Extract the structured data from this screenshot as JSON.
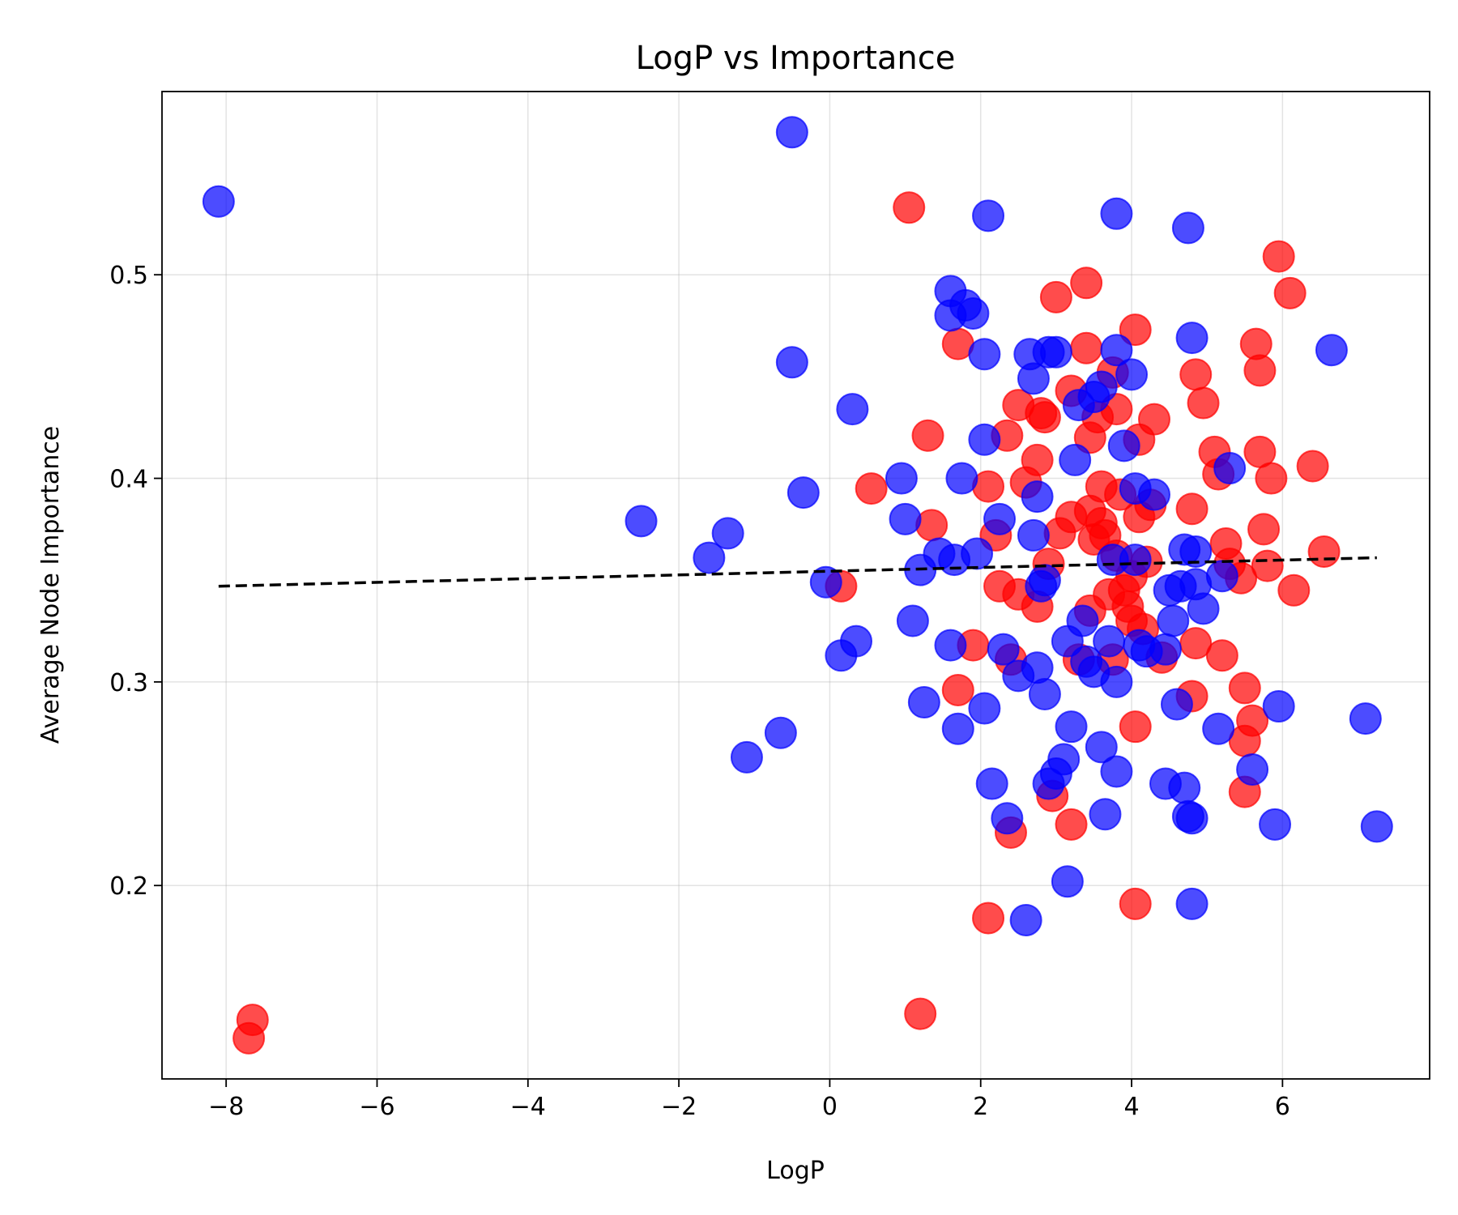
{
  "chart_data": {
    "type": "scatter",
    "title": "LogP vs Importance",
    "xlabel": "LogP",
    "ylabel": "Average Node Importance",
    "xlim": [
      -8.85,
      7.95
    ],
    "ylim": [
      0.105,
      0.59
    ],
    "xticks": [
      -8,
      -6,
      -4,
      -2,
      0,
      2,
      4,
      6
    ],
    "yticks": [
      0.2,
      0.3,
      0.4,
      0.5
    ],
    "xtick_labels": [
      "−8",
      "−6",
      "−4",
      "−2",
      "0",
      "2",
      "4",
      "6"
    ],
    "ytick_labels": [
      "0.2",
      "0.3",
      "0.4",
      "0.5"
    ],
    "grid": true,
    "colors": {
      "series_a": "#ff0000",
      "series_b": "#0000ff",
      "trend": "#000000"
    },
    "series": [
      {
        "color": "#ff0000",
        "points": [
          [
            -7.65,
            0.134
          ],
          [
            -7.7,
            0.125
          ],
          [
            1.05,
            0.533
          ],
          [
            1.2,
            0.137
          ],
          [
            0.15,
            0.347
          ],
          [
            0.55,
            0.395
          ],
          [
            1.3,
            0.421
          ],
          [
            1.35,
            0.377
          ],
          [
            1.7,
            0.466
          ],
          [
            1.7,
            0.296
          ],
          [
            1.9,
            0.318
          ],
          [
            2.1,
            0.396
          ],
          [
            2.1,
            0.184
          ],
          [
            2.2,
            0.372
          ],
          [
            2.25,
            0.347
          ],
          [
            2.35,
            0.421
          ],
          [
            2.4,
            0.311
          ],
          [
            2.4,
            0.226
          ],
          [
            2.5,
            0.436
          ],
          [
            2.5,
            0.343
          ],
          [
            2.6,
            0.398
          ],
          [
            2.75,
            0.409
          ],
          [
            2.75,
            0.337
          ],
          [
            2.8,
            0.432
          ],
          [
            2.85,
            0.43
          ],
          [
            2.9,
            0.358
          ],
          [
            2.95,
            0.244
          ],
          [
            3.0,
            0.489
          ],
          [
            3.05,
            0.373
          ],
          [
            3.2,
            0.443
          ],
          [
            3.2,
            0.381
          ],
          [
            3.2,
            0.23
          ],
          [
            3.3,
            0.311
          ],
          [
            3.4,
            0.496
          ],
          [
            3.4,
            0.464
          ],
          [
            3.45,
            0.42
          ],
          [
            3.45,
            0.384
          ],
          [
            3.45,
            0.335
          ],
          [
            3.5,
            0.37
          ],
          [
            3.55,
            0.43
          ],
          [
            3.6,
            0.396
          ],
          [
            3.6,
            0.378
          ],
          [
            3.65,
            0.372
          ],
          [
            3.7,
            0.343
          ],
          [
            3.75,
            0.452
          ],
          [
            3.75,
            0.311
          ],
          [
            3.8,
            0.434
          ],
          [
            3.8,
            0.362
          ],
          [
            3.85,
            0.392
          ],
          [
            3.9,
            0.345
          ],
          [
            3.95,
            0.337
          ],
          [
            4.0,
            0.352
          ],
          [
            4.0,
            0.33
          ],
          [
            4.05,
            0.473
          ],
          [
            4.05,
            0.278
          ],
          [
            4.05,
            0.191
          ],
          [
            4.1,
            0.419
          ],
          [
            4.1,
            0.381
          ],
          [
            4.15,
            0.326
          ],
          [
            4.2,
            0.359
          ],
          [
            4.25,
            0.387
          ],
          [
            4.3,
            0.429
          ],
          [
            4.4,
            0.312
          ],
          [
            4.8,
            0.385
          ],
          [
            4.8,
            0.293
          ],
          [
            4.85,
            0.451
          ],
          [
            4.85,
            0.319
          ],
          [
            4.95,
            0.437
          ],
          [
            5.1,
            0.413
          ],
          [
            5.15,
            0.402
          ],
          [
            5.2,
            0.313
          ],
          [
            5.25,
            0.368
          ],
          [
            5.3,
            0.358
          ],
          [
            5.45,
            0.351
          ],
          [
            5.5,
            0.297
          ],
          [
            5.5,
            0.271
          ],
          [
            5.5,
            0.246
          ],
          [
            5.6,
            0.281
          ],
          [
            5.65,
            0.466
          ],
          [
            5.7,
            0.453
          ],
          [
            5.7,
            0.413
          ],
          [
            5.75,
            0.375
          ],
          [
            5.8,
            0.357
          ],
          [
            5.85,
            0.4
          ],
          [
            5.95,
            0.509
          ],
          [
            6.1,
            0.491
          ],
          [
            6.15,
            0.345
          ],
          [
            6.4,
            0.406
          ],
          [
            6.55,
            0.364
          ]
        ]
      },
      {
        "color": "#0000ff",
        "points": [
          [
            -8.1,
            0.536
          ],
          [
            -0.5,
            0.57
          ],
          [
            -0.5,
            0.457
          ],
          [
            -0.35,
            0.393
          ],
          [
            -0.05,
            0.349
          ],
          [
            0.15,
            0.313
          ],
          [
            0.3,
            0.434
          ],
          [
            0.35,
            0.32
          ],
          [
            0.95,
            0.4
          ],
          [
            1.0,
            0.38
          ],
          [
            1.1,
            0.33
          ],
          [
            1.2,
            0.355
          ],
          [
            1.25,
            0.29
          ],
          [
            1.45,
            0.363
          ],
          [
            1.6,
            0.492
          ],
          [
            1.6,
            0.48
          ],
          [
            1.6,
            0.318
          ],
          [
            1.65,
            0.36
          ],
          [
            1.7,
            0.277
          ],
          [
            1.75,
            0.4
          ],
          [
            1.8,
            0.485
          ],
          [
            1.9,
            0.481
          ],
          [
            1.95,
            0.363
          ],
          [
            2.05,
            0.461
          ],
          [
            2.05,
            0.419
          ],
          [
            2.05,
            0.287
          ],
          [
            2.1,
            0.529
          ],
          [
            2.15,
            0.25
          ],
          [
            2.25,
            0.38
          ],
          [
            2.3,
            0.316
          ],
          [
            2.35,
            0.233
          ],
          [
            2.5,
            0.303
          ],
          [
            2.6,
            0.183
          ],
          [
            2.65,
            0.461
          ],
          [
            2.7,
            0.449
          ],
          [
            2.7,
            0.372
          ],
          [
            2.75,
            0.391
          ],
          [
            2.75,
            0.307
          ],
          [
            2.8,
            0.347
          ],
          [
            2.85,
            0.35
          ],
          [
            2.85,
            0.294
          ],
          [
            2.9,
            0.462
          ],
          [
            2.9,
            0.25
          ],
          [
            3.0,
            0.255
          ],
          [
            3.0,
            0.462
          ],
          [
            3.1,
            0.262
          ],
          [
            3.15,
            0.32
          ],
          [
            3.15,
            0.202
          ],
          [
            3.2,
            0.278
          ],
          [
            3.25,
            0.409
          ],
          [
            3.3,
            0.436
          ],
          [
            3.35,
            0.33
          ],
          [
            3.4,
            0.31
          ],
          [
            3.5,
            0.44
          ],
          [
            3.5,
            0.305
          ],
          [
            3.6,
            0.445
          ],
          [
            3.6,
            0.268
          ],
          [
            3.65,
            0.235
          ],
          [
            3.7,
            0.32
          ],
          [
            3.75,
            0.36
          ],
          [
            3.8,
            0.53
          ],
          [
            3.8,
            0.463
          ],
          [
            3.8,
            0.3
          ],
          [
            3.9,
            0.416
          ],
          [
            4.0,
            0.451
          ],
          [
            4.05,
            0.395
          ],
          [
            4.05,
            0.36
          ],
          [
            4.1,
            0.318
          ],
          [
            4.2,
            0.315
          ],
          [
            4.3,
            0.392
          ],
          [
            4.45,
            0.25
          ],
          [
            4.45,
            0.316
          ],
          [
            4.5,
            0.345
          ],
          [
            4.55,
            0.33
          ],
          [
            4.6,
            0.289
          ],
          [
            4.65,
            0.347
          ],
          [
            4.7,
            0.248
          ],
          [
            4.7,
            0.365
          ],
          [
            4.75,
            0.523
          ],
          [
            4.75,
            0.234
          ],
          [
            4.8,
            0.233
          ],
          [
            4.8,
            0.191
          ],
          [
            4.8,
            0.469
          ],
          [
            4.85,
            0.348
          ],
          [
            4.85,
            0.364
          ],
          [
            4.95,
            0.336
          ],
          [
            5.15,
            0.277
          ],
          [
            5.2,
            0.352
          ],
          [
            5.3,
            0.405
          ],
          [
            5.6,
            0.257
          ],
          [
            5.9,
            0.23
          ],
          [
            5.95,
            0.288
          ],
          [
            6.65,
            0.463
          ],
          [
            7.1,
            0.282
          ],
          [
            7.25,
            0.229
          ],
          [
            -2.5,
            0.379
          ],
          [
            -1.6,
            0.361
          ],
          [
            -1.35,
            0.373
          ],
          [
            -1.1,
            0.263
          ],
          [
            -0.65,
            0.275
          ],
          [
            3.8,
            0.256
          ]
        ]
      }
    ],
    "trendline": {
      "style": "dashed-to-solid",
      "x": [
        -8.1,
        7.25
      ],
      "y": [
        0.347,
        0.361
      ]
    }
  }
}
